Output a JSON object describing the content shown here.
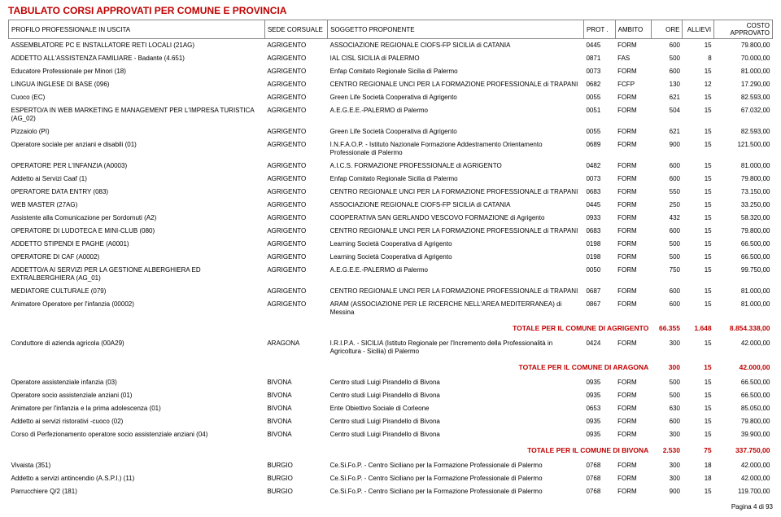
{
  "page_title": "TABULATO CORSI APPROVATI PER COMUNE E PROVINCIA",
  "footer_text": "Pagina 4 di 93",
  "table": {
    "header_bg": "#ffffff",
    "border_color": "#888888",
    "accent_color": "#c00000",
    "columns": [
      {
        "key": "profilo",
        "label": "PROFILO PROFESSIONALE IN USCITA",
        "class": "col-profilo"
      },
      {
        "key": "sede",
        "label": "SEDE CORSUALE",
        "class": "col-sede"
      },
      {
        "key": "sogg",
        "label": "SOGGETTO PROPONENTE",
        "class": "col-sogg"
      },
      {
        "key": "prot",
        "label": "PROT .",
        "class": "col-prot"
      },
      {
        "key": "ambito",
        "label": "AMBITO",
        "class": "col-ambito"
      },
      {
        "key": "ore",
        "label": "ORE",
        "class": "col-ore"
      },
      {
        "key": "allievi",
        "label": "ALLIEVI",
        "class": "col-allievi"
      },
      {
        "key": "costo",
        "label": "COSTO APPROVATO",
        "class": "col-costo"
      }
    ],
    "rows": [
      {
        "profilo": "ASSEMBLATORE PC E INSTALLATORE RETI LOCALI (21AG)",
        "sede": "AGRIGENTO",
        "sogg": "ASSOCIAZIONE REGIONALE CIOFS-FP SICILIA di CATANIA",
        "prot": "0445",
        "ambito": "FORM",
        "ore": "600",
        "allievi": "15",
        "costo": "79.800,00"
      },
      {
        "profilo": "ADDETTO ALL'ASSISTENZA FAMILIARE - Badante (4.651)",
        "sede": "AGRIGENTO",
        "sogg": "IAL CISL SICILIA di PALERMO",
        "prot": "0871",
        "ambito": "FAS",
        "ore": "500",
        "allievi": "8",
        "costo": "70.000,00"
      },
      {
        "profilo": "Educatore Professionale per Minori (18)",
        "sede": "AGRIGENTO",
        "sogg": "Enfap Comitato Regionale Sicilia di Palermo",
        "prot": "0073",
        "ambito": "FORM",
        "ore": "600",
        "allievi": "15",
        "costo": "81.000,00"
      },
      {
        "profilo": "LINGUA INGLESE DI BASE (096)",
        "sede": "AGRIGENTO",
        "sogg": "CENTRO REGIONALE UNCI PER LA FORMAZIONE PROFESSIONALE di TRAPANI",
        "prot": "0682",
        "ambito": "FCFP",
        "ore": "130",
        "allievi": "12",
        "costo": "17.290,00"
      },
      {
        "profilo": "Cuoco (EC)",
        "sede": "AGRIGENTO",
        "sogg": "Green Life Società Cooperativa di Agrigento",
        "prot": "0055",
        "ambito": "FORM",
        "ore": "621",
        "allievi": "15",
        "costo": "82.593,00"
      },
      {
        "profilo": "ESPERTO/A IN WEB MARKETING E MANAGEMENT PER L'IMPRESA TURISTICA (AG_02)",
        "sede": "AGRIGENTO",
        "sogg": "A.E.G.E.E.-PALERMO di Palermo",
        "prot": "0051",
        "ambito": "FORM",
        "ore": "504",
        "allievi": "15",
        "costo": "67.032,00"
      },
      {
        "profilo": "Pizzaiolo (PI)",
        "sede": "AGRIGENTO",
        "sogg": "Green Life Società Cooperativa di Agrigento",
        "prot": "0055",
        "ambito": "FORM",
        "ore": "621",
        "allievi": "15",
        "costo": "82.593,00"
      },
      {
        "profilo": "Operatore sociale per anziani e disabili (01)",
        "sede": "AGRIGENTO",
        "sogg": "I.N.F.A.O.P. - Istituto Nazionale Formazione Addestramento Orientamento Professionale di Palermo",
        "prot": "0689",
        "ambito": "FORM",
        "ore": "900",
        "allievi": "15",
        "costo": "121.500,00"
      },
      {
        "profilo": "OPERATORE PER L'INFANZIA (A0003)",
        "sede": "AGRIGENTO",
        "sogg": "A.I.C.S. FORMAZIONE PROFESSIONALE di AGRIGENTO",
        "prot": "0482",
        "ambito": "FORM",
        "ore": "600",
        "allievi": "15",
        "costo": "81.000,00"
      },
      {
        "profilo": "Addetto ai Servizi Caaf (1)",
        "sede": "AGRIGENTO",
        "sogg": "Enfap Comitato Regionale Sicilia di Palermo",
        "prot": "0073",
        "ambito": "FORM",
        "ore": "600",
        "allievi": "15",
        "costo": "79.800,00"
      },
      {
        "profilo": "0PERATORE DATA ENTRY (083)",
        "sede": "AGRIGENTO",
        "sogg": "CENTRO REGIONALE UNCI PER LA FORMAZIONE PROFESSIONALE di TRAPANI",
        "prot": "0683",
        "ambito": "FORM",
        "ore": "550",
        "allievi": "15",
        "costo": "73.150,00"
      },
      {
        "profilo": "WEB MASTER (27AG)",
        "sede": "AGRIGENTO",
        "sogg": "ASSOCIAZIONE REGIONALE CIOFS-FP SICILIA di CATANIA",
        "prot": "0445",
        "ambito": "FORM",
        "ore": "250",
        "allievi": "15",
        "costo": "33.250,00"
      },
      {
        "profilo": "Assistente alla Comunicazione per Sordomuti (A2)",
        "sede": "AGRIGENTO",
        "sogg": "COOPERATIVA SAN GERLANDO VESCOVO FORMAZIONE di Agrigento",
        "prot": "0933",
        "ambito": "FORM",
        "ore": "432",
        "allievi": "15",
        "costo": "58.320,00"
      },
      {
        "profilo": "OPERATORE DI LUDOTECA E MINI-CLUB (080)",
        "sede": "AGRIGENTO",
        "sogg": "CENTRO REGIONALE UNCI PER LA FORMAZIONE PROFESSIONALE di TRAPANI",
        "prot": "0683",
        "ambito": "FORM",
        "ore": "600",
        "allievi": "15",
        "costo": "79.800,00"
      },
      {
        "profilo": "ADDETTO STIPENDI E PAGHE (A0001)",
        "sede": "AGRIGENTO",
        "sogg": "Learning Società Cooperativa di Agrigento",
        "prot": "0198",
        "ambito": "FORM",
        "ore": "500",
        "allievi": "15",
        "costo": "66.500,00"
      },
      {
        "profilo": "OPERATORE DI CAF (A0002)",
        "sede": "AGRIGENTO",
        "sogg": "Learning Società Cooperativa di Agrigento",
        "prot": "0198",
        "ambito": "FORM",
        "ore": "500",
        "allievi": "15",
        "costo": "66.500,00"
      },
      {
        "profilo": "ADDETTO/A AI SERVIZI PER LA GESTIONE ALBERGHIERA ED EXTRALBERGHIERA (AG_01)",
        "sede": "AGRIGENTO",
        "sogg": "A.E.G.E.E.-PALERMO di Palermo",
        "prot": "0050",
        "ambito": "FORM",
        "ore": "750",
        "allievi": "15",
        "costo": "99.750,00"
      },
      {
        "profilo": "MEDIATORE CULTURALE (079)",
        "sede": "AGRIGENTO",
        "sogg": "CENTRO REGIONALE UNCI PER LA FORMAZIONE PROFESSIONALE di TRAPANI",
        "prot": "0687",
        "ambito": "FORM",
        "ore": "600",
        "allievi": "15",
        "costo": "81.000,00"
      },
      {
        "profilo": "Animatore Operatore per l'infanzia (00002)",
        "sede": "AGRIGENTO",
        "sogg": "ARAM (ASSOCIAZIONE PER LE RICERCHE NELL'AREA MEDITERRANEA) di Messina",
        "prot": "0867",
        "ambito": "FORM",
        "ore": "600",
        "allievi": "15",
        "costo": "81.000,00"
      },
      {
        "total": true,
        "label": "TOTALE PER IL COMUNE DI AGRIGENTO",
        "ore": "66.355",
        "allievi": "1.648",
        "costo": "8.854.338,00"
      },
      {
        "profilo": "Conduttore di azienda agricola (00A29)",
        "sede": "ARAGONA",
        "sogg": "I.R.I.P.A. - SICILIA (Istituto Regionale per l'Incremento della Professionalità in Agricoltura - Sicilia) di Palermo",
        "prot": "0424",
        "ambito": "FORM",
        "ore": "300",
        "allievi": "15",
        "costo": "42.000,00"
      },
      {
        "total": true,
        "label": "TOTALE PER IL COMUNE DI ARAGONA",
        "ore": "300",
        "allievi": "15",
        "costo": "42.000,00"
      },
      {
        "profilo": "Operatore assistenziale infanzia (03)",
        "sede": "BIVONA",
        "sogg": "Centro studi Luigi Pirandello di Bivona",
        "prot": "0935",
        "ambito": "FORM",
        "ore": "500",
        "allievi": "15",
        "costo": "66.500,00"
      },
      {
        "profilo": "Operatore socio assistenziale anziani (01)",
        "sede": "BIVONA",
        "sogg": "Centro studi Luigi Pirandello di Bivona",
        "prot": "0935",
        "ambito": "FORM",
        "ore": "500",
        "allievi": "15",
        "costo": "66.500,00"
      },
      {
        "profilo": "Animatore per l'infanzia e la prima adolescenza (01)",
        "sede": "BIVONA",
        "sogg": "Ente Obiettivo Sociale di Corleone",
        "prot": "0653",
        "ambito": "FORM",
        "ore": "630",
        "allievi": "15",
        "costo": "85.050,00"
      },
      {
        "profilo": "Addetto ai servizi ristorativi -cuoco (02)",
        "sede": "BIVONA",
        "sogg": "Centro studi Luigi Pirandello di Bivona",
        "prot": "0935",
        "ambito": "FORM",
        "ore": "600",
        "allievi": "15",
        "costo": "79.800,00"
      },
      {
        "profilo": "Corso di Perfezionamento operatore socio assistenziale anziani (04)",
        "sede": "BIVONA",
        "sogg": "Centro studi Luigi Pirandello di Bivona",
        "prot": "0935",
        "ambito": "FORM",
        "ore": "300",
        "allievi": "15",
        "costo": "39.900,00"
      },
      {
        "total": true,
        "label": "TOTALE PER IL COMUNE DI BIVONA",
        "ore": "2.530",
        "allievi": "75",
        "costo": "337.750,00"
      },
      {
        "profilo": "Vivaista (351)",
        "sede": "BURGIO",
        "sogg": "Ce.Si.Fo.P. - Centro Siciliano per la Formazione Professionale di Palermo",
        "prot": "0768",
        "ambito": "FORM",
        "ore": "300",
        "allievi": "18",
        "costo": "42.000,00"
      },
      {
        "profilo": "Addetto a servizi antincendio (A.S.P.I.) (11)",
        "sede": "BURGIO",
        "sogg": "Ce.Si.Fo.P. - Centro Siciliano per la Formazione Professionale di Palermo",
        "prot": "0768",
        "ambito": "FORM",
        "ore": "300",
        "allievi": "18",
        "costo": "42.000,00"
      },
      {
        "profilo": "Parrucchiere Q/2 (181)",
        "sede": "BURGIO",
        "sogg": "Ce.Si.Fo.P. - Centro Siciliano per la Formazione Professionale di Palermo",
        "prot": "0768",
        "ambito": "FORM",
        "ore": "900",
        "allievi": "15",
        "costo": "119.700,00"
      }
    ]
  }
}
